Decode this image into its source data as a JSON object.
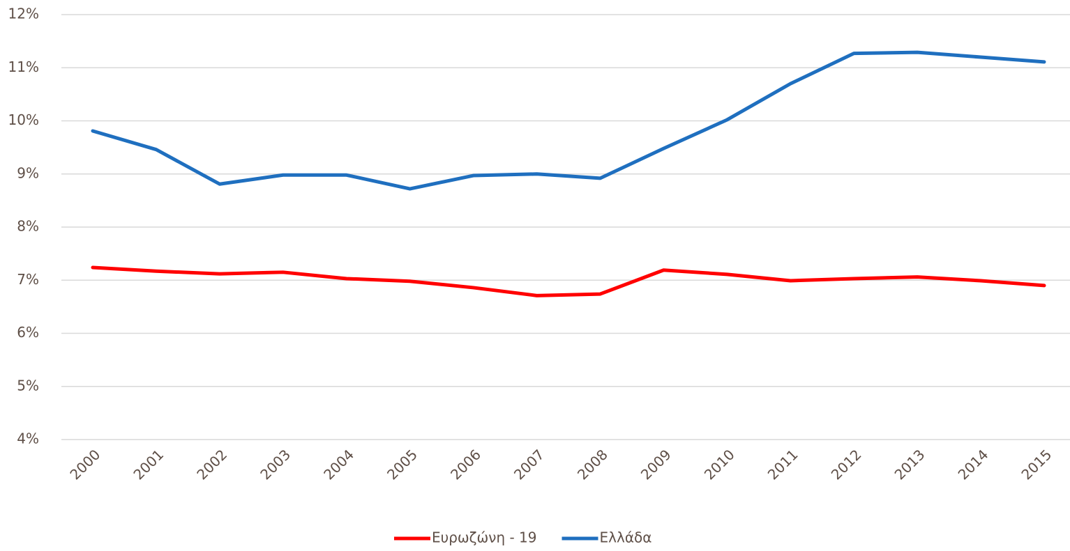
{
  "chart_data": {
    "type": "line",
    "categories": [
      "2000",
      "2001",
      "2002",
      "2003",
      "2004",
      "2005",
      "2006",
      "2007",
      "2008",
      "2009",
      "2010",
      "2011",
      "2012",
      "2013",
      "2014",
      "2015"
    ],
    "series": [
      {
        "name": "Ευρωζώνη - 19",
        "color": "#ff0000",
        "values": [
          7.24,
          7.17,
          7.12,
          7.15,
          7.03,
          6.98,
          6.86,
          6.71,
          6.74,
          7.19,
          7.11,
          6.99,
          7.03,
          7.06,
          6.99,
          6.9
        ]
      },
      {
        "name": "Ελλάδα",
        "color": "#1f6fbf",
        "values": [
          9.81,
          9.46,
          8.81,
          8.98,
          8.98,
          8.72,
          8.97,
          9.0,
          8.92,
          9.48,
          10.02,
          10.7,
          11.27,
          11.29,
          11.2,
          11.11
        ]
      }
    ],
    "ylim": [
      4,
      12
    ],
    "yticks": [
      {
        "value": 4,
        "label": "4%"
      },
      {
        "value": 5,
        "label": "5%"
      },
      {
        "value": 6,
        "label": "6%"
      },
      {
        "value": 7,
        "label": "7%"
      },
      {
        "value": 8,
        "label": "8%"
      },
      {
        "value": 9,
        "label": "9%"
      },
      {
        "value": 10,
        "label": "10%"
      },
      {
        "value": 11,
        "label": "11%"
      },
      {
        "value": 12,
        "label": "12%"
      }
    ],
    "grid": true,
    "legend": "bottom"
  }
}
